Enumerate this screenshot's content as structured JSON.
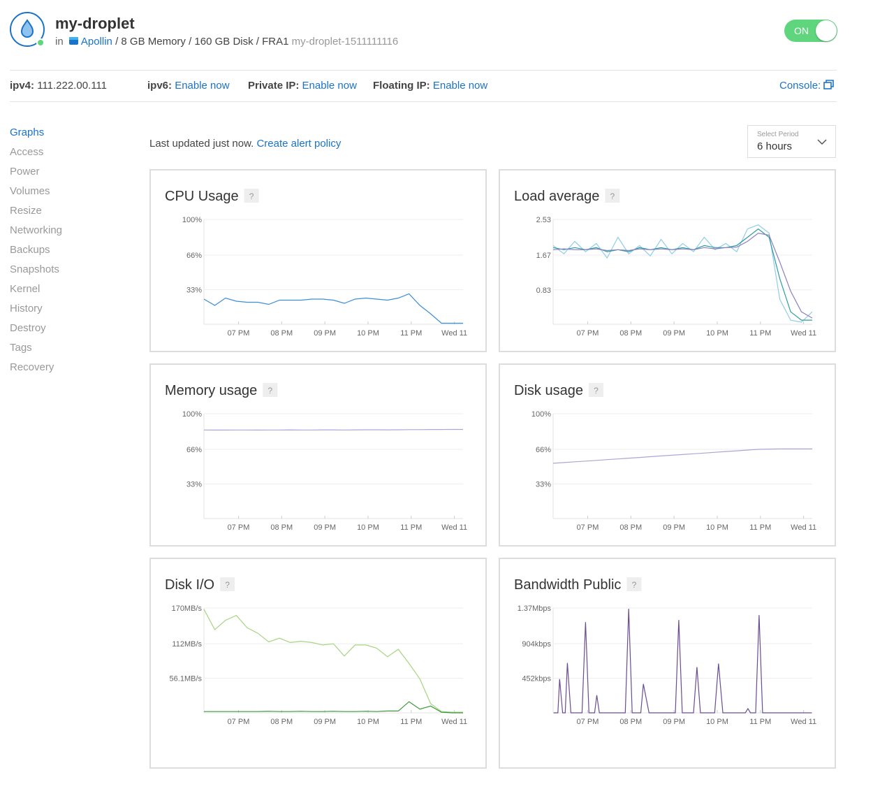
{
  "header": {
    "title": "my-droplet",
    "in": "in",
    "project": "Apollin",
    "specs": "/ 8 GB Memory / 160 GB Disk / FRA1",
    "hostname": "my-droplet-1511111116",
    "toggle": "ON"
  },
  "network": {
    "ipv4_label": "ipv4:",
    "ipv4": "111.222.00.111",
    "ipv6_label": "ipv6:",
    "ipv6_link": "Enable now",
    "private_label": "Private IP:",
    "private_link": "Enable now",
    "floating_label": "Floating IP:",
    "floating_link": "Enable now",
    "console": "Console:"
  },
  "sidebar": {
    "items": [
      "Graphs",
      "Access",
      "Power",
      "Volumes",
      "Resize",
      "Networking",
      "Backups",
      "Snapshots",
      "Kernel",
      "History",
      "Destroy",
      "Tags",
      "Recovery"
    ]
  },
  "toolbar": {
    "status": "Last updated just now.",
    "link": "Create alert policy",
    "period_label": "Select Period",
    "period": "6 hours"
  },
  "chart_data": [
    {
      "type": "line",
      "title": "CPU Usage",
      "help": "?",
      "x": [
        18.2,
        18.45,
        18.7,
        18.95,
        19.2,
        19.45,
        19.7,
        19.95,
        20.2,
        20.45,
        20.7,
        20.95,
        21.2,
        21.45,
        21.7,
        21.95,
        22.2,
        22.45,
        22.7,
        22.95,
        23.2,
        23.45,
        23.7,
        23.95,
        24.2
      ],
      "series": [
        {
          "color": "#3b8ed8",
          "values": [
            24,
            18,
            25,
            22,
            21,
            21,
            19,
            23,
            23,
            23,
            24,
            24,
            23,
            20,
            24,
            25,
            24,
            23,
            25,
            29,
            18,
            10,
            1,
            1,
            1
          ]
        }
      ],
      "xlim": [
        18.2,
        24.2
      ],
      "xticks": [
        {
          "value": 19,
          "label": "07 PM"
        },
        {
          "value": 20,
          "label": "08 PM"
        },
        {
          "value": 21,
          "label": "09 PM"
        },
        {
          "value": 22,
          "label": "10 PM"
        },
        {
          "value": 23,
          "label": "11 PM"
        },
        {
          "value": 24,
          "label": "Wed 11"
        }
      ],
      "ylim": [
        0,
        100
      ],
      "yticks": [
        {
          "value": 33,
          "label": "33%"
        },
        {
          "value": 66,
          "label": "66%"
        },
        {
          "value": 100,
          "label": "100%"
        }
      ],
      "grid": true
    },
    {
      "type": "line",
      "title": "Load average",
      "help": "?",
      "x": [
        18.2,
        18.45,
        18.7,
        18.95,
        19.2,
        19.45,
        19.7,
        19.95,
        20.2,
        20.45,
        20.7,
        20.95,
        21.2,
        21.45,
        21.7,
        21.95,
        22.2,
        22.45,
        22.7,
        22.95,
        23.2,
        23.45,
        23.7,
        23.95,
        24.2
      ],
      "series": [
        {
          "color": "#8fcde8",
          "values": [
            1.9,
            1.7,
            2.0,
            1.75,
            1.95,
            1.6,
            2.1,
            1.7,
            1.9,
            1.65,
            2.05,
            1.7,
            1.95,
            1.75,
            2.1,
            1.8,
            1.95,
            1.75,
            2.3,
            2.4,
            2.2,
            0.6,
            0.1,
            0.05,
            0.3
          ]
        },
        {
          "color": "#2a9d9f",
          "values": [
            1.85,
            1.8,
            1.85,
            1.8,
            1.85,
            1.75,
            1.8,
            1.75,
            1.85,
            1.8,
            1.85,
            1.8,
            1.85,
            1.8,
            1.9,
            1.85,
            1.85,
            1.9,
            2.1,
            2.3,
            2.1,
            1.1,
            0.3,
            0.1,
            0.1
          ]
        },
        {
          "color": "#8d7fbf",
          "values": [
            1.8,
            1.82,
            1.8,
            1.8,
            1.82,
            1.78,
            1.8,
            1.78,
            1.82,
            1.8,
            1.82,
            1.8,
            1.82,
            1.8,
            1.85,
            1.82,
            1.85,
            1.86,
            2.0,
            2.2,
            2.15,
            1.5,
            0.8,
            0.3,
            0.15
          ]
        }
      ],
      "xlim": [
        18.2,
        24.2
      ],
      "xticks": [
        {
          "value": 19,
          "label": "07 PM"
        },
        {
          "value": 20,
          "label": "08 PM"
        },
        {
          "value": 21,
          "label": "09 PM"
        },
        {
          "value": 22,
          "label": "10 PM"
        },
        {
          "value": 23,
          "label": "11 PM"
        },
        {
          "value": 24,
          "label": "Wed 11"
        }
      ],
      "ylim": [
        0,
        2.53
      ],
      "yticks": [
        0.83,
        1.67,
        2.53
      ],
      "grid": true
    },
    {
      "type": "line",
      "title": "Memory usage",
      "help": "?",
      "x": [
        18.2,
        18.45,
        18.7,
        18.95,
        19.2,
        19.45,
        19.7,
        19.95,
        20.2,
        20.45,
        20.7,
        20.95,
        21.2,
        21.45,
        21.7,
        21.95,
        22.2,
        22.45,
        22.7,
        22.95,
        23.2,
        23.45,
        23.7,
        23.95,
        24.2
      ],
      "series": [
        {
          "color": "#aaa6d8",
          "values": [
            84.5,
            84.4,
            84.4,
            84.5,
            84.5,
            84.4,
            84.5,
            84.5,
            84.6,
            84.5,
            84.5,
            84.6,
            84.6,
            84.5,
            84.6,
            84.7,
            84.7,
            84.6,
            84.7,
            84.8,
            84.8,
            84.9,
            84.9,
            85,
            85
          ]
        }
      ],
      "xlim": [
        18.2,
        24.2
      ],
      "xticks": [
        {
          "value": 19,
          "label": "07 PM"
        },
        {
          "value": 20,
          "label": "08 PM"
        },
        {
          "value": 21,
          "label": "09 PM"
        },
        {
          "value": 22,
          "label": "10 PM"
        },
        {
          "value": 23,
          "label": "11 PM"
        },
        {
          "value": 24,
          "label": "Wed 11"
        }
      ],
      "ylim": [
        0,
        100
      ],
      "yticks": [
        {
          "value": 33,
          "label": "33%"
        },
        {
          "value": 66,
          "label": "66%"
        },
        {
          "value": 100,
          "label": "100%"
        }
      ],
      "grid": true
    },
    {
      "type": "line",
      "title": "Disk usage",
      "help": "?",
      "x": [
        18.2,
        18.45,
        18.7,
        18.95,
        19.2,
        19.45,
        19.7,
        19.95,
        20.2,
        20.45,
        20.7,
        20.95,
        21.2,
        21.45,
        21.7,
        21.95,
        22.2,
        22.45,
        22.7,
        22.95,
        23.2,
        23.45,
        23.7,
        23.95,
        24.2
      ],
      "series": [
        {
          "color": "#aaa6d8",
          "values": [
            52.7,
            53.4,
            54.1,
            54.8,
            55.5,
            56.2,
            56.9,
            57.6,
            58.3,
            59,
            59.7,
            60.4,
            61.1,
            61.8,
            62.5,
            63.2,
            63.9,
            64.6,
            65.3,
            66,
            66.3,
            66.4,
            66.4,
            66.4,
            66.4
          ]
        }
      ],
      "xlim": [
        18.2,
        24.2
      ],
      "xticks": [
        {
          "value": 19,
          "label": "07 PM"
        },
        {
          "value": 20,
          "label": "08 PM"
        },
        {
          "value": 21,
          "label": "09 PM"
        },
        {
          "value": 22,
          "label": "10 PM"
        },
        {
          "value": 23,
          "label": "11 PM"
        },
        {
          "value": 24,
          "label": "Wed 11"
        }
      ],
      "ylim": [
        0,
        100
      ],
      "yticks": [
        {
          "value": 33,
          "label": "33%"
        },
        {
          "value": 66,
          "label": "66%"
        },
        {
          "value": 100,
          "label": "100%"
        }
      ],
      "grid": true
    },
    {
      "type": "line",
      "title": "Disk I/O",
      "help": "?",
      "x": [
        18.2,
        18.45,
        18.7,
        18.95,
        19.2,
        19.45,
        19.7,
        19.95,
        20.2,
        20.45,
        20.7,
        20.95,
        21.2,
        21.45,
        21.7,
        21.95,
        22.2,
        22.45,
        22.7,
        22.95,
        23.2,
        23.45,
        23.7,
        23.95,
        24.2
      ],
      "series": [
        {
          "color": "#a8d47f",
          "values": [
            168,
            135,
            150,
            158,
            138,
            129,
            115,
            121,
            114,
            116,
            114,
            110,
            112,
            92,
            110,
            110,
            105,
            91,
            103,
            80,
            55,
            15,
            2,
            1,
            1
          ]
        },
        {
          "color": "#3a9a3a",
          "values": [
            2,
            2,
            2,
            2,
            2,
            2,
            2.5,
            2,
            2,
            2.5,
            2,
            2,
            2.5,
            2,
            2,
            2.5,
            2,
            3,
            3,
            18,
            6,
            11,
            1,
            0,
            0
          ]
        }
      ],
      "xlim": [
        18.2,
        24.2
      ],
      "xticks": [
        {
          "value": 19,
          "label": "07 PM"
        },
        {
          "value": 20,
          "label": "08 PM"
        },
        {
          "value": 21,
          "label": "09 PM"
        },
        {
          "value": 22,
          "label": "10 PM"
        },
        {
          "value": 23,
          "label": "11 PM"
        },
        {
          "value": 24,
          "label": "Wed 11"
        }
      ],
      "ylim": [
        0,
        170
      ],
      "yticks": [
        {
          "value": 56.1,
          "label": "56.1MB/s"
        },
        {
          "value": 112,
          "label": "112MB/s"
        },
        {
          "value": 170,
          "label": "170MB/s"
        }
      ],
      "grid": true
    },
    {
      "type": "line",
      "title": "Bandwidth Public",
      "help": "?",
      "x": [
        18.21,
        18.31,
        18.35,
        18.42,
        18.48,
        18.53,
        18.61,
        18.87,
        18.95,
        19.03,
        19.16,
        19.21,
        19.27,
        19.87,
        19.95,
        20.03,
        20.23,
        20.29,
        20.42,
        21.03,
        21.11,
        21.19,
        21.45,
        21.53,
        21.61,
        21.94,
        22.03,
        22.13,
        22.65,
        22.71,
        22.77,
        22.89,
        22.97,
        23.05,
        24.19
      ],
      "series": [
        {
          "color": "#6a4c93",
          "values": [
            0,
            0,
            441,
            0,
            0,
            652,
            0,
            0,
            1185,
            0,
            0,
            230,
            0,
            0,
            1360,
            0,
            0,
            377,
            0,
            0,
            1213,
            0,
            0,
            597,
            0,
            0,
            643,
            0,
            0,
            55,
            0,
            0,
            1277,
            0,
            0
          ]
        }
      ],
      "xlim": [
        18.2,
        24.2
      ],
      "xticks": [
        {
          "value": 19,
          "label": "07 PM"
        },
        {
          "value": 20,
          "label": "08 PM"
        },
        {
          "value": 21,
          "label": "09 PM"
        },
        {
          "value": 22,
          "label": "10 PM"
        },
        {
          "value": 23,
          "label": "11 PM"
        },
        {
          "value": 24,
          "label": "Wed 11"
        }
      ],
      "ylim": [
        0,
        1370
      ],
      "yticks": [
        {
          "value": 452,
          "label": "452kbps"
        },
        {
          "value": 904,
          "label": "904kbps"
        },
        {
          "value": 1370,
          "label": "1.37Mbps"
        }
      ],
      "grid": true
    }
  ]
}
